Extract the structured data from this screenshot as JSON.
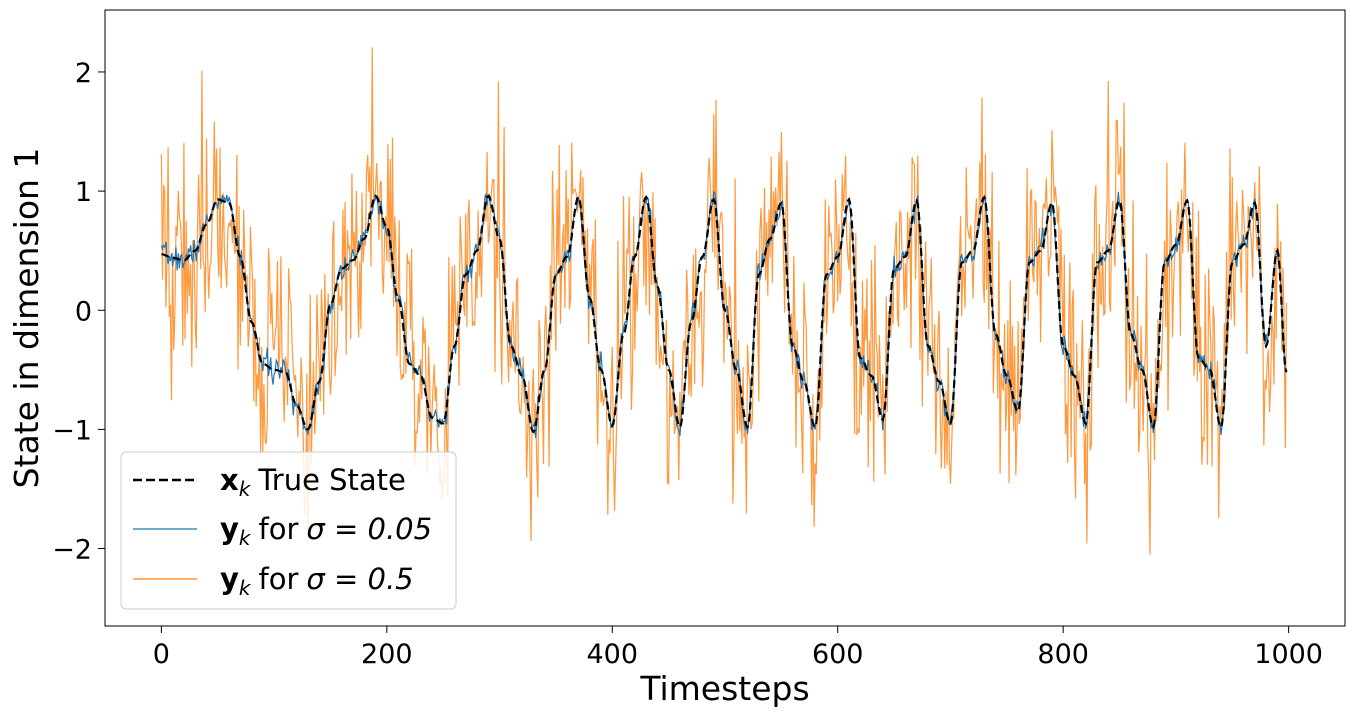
{
  "chart_data": {
    "type": "line",
    "xlabel": "Timesteps",
    "ylabel": "State in dimension 1",
    "xlim": [
      -50,
      1050
    ],
    "ylim": [
      -2.65,
      2.52
    ],
    "xticks": [
      0,
      200,
      400,
      600,
      800,
      1000
    ],
    "xtick_labels": [
      "0",
      "200",
      "400",
      "600",
      "800",
      "1000"
    ],
    "yticks": [
      -2,
      -1,
      0,
      1,
      2
    ],
    "ytick_labels": [
      "−2",
      "−1",
      "0",
      "1",
      "2"
    ],
    "grid": false,
    "legend": {
      "placement": "lower-left",
      "entries": [
        {
          "symbol": "x",
          "subscript": "k",
          "label": "True State"
        },
        {
          "symbol": "y",
          "subscript": "k",
          "label": "for",
          "math": "σ = 0.05"
        },
        {
          "symbol": "y",
          "subscript": "k",
          "label": "for",
          "math": "σ = 0.5"
        }
      ]
    },
    "series": [
      {
        "key": "true_state",
        "style": "dashed",
        "color": "#000000",
        "x": [
          0,
          10,
          20,
          30,
          40,
          50,
          60,
          70,
          80,
          90,
          100,
          110,
          120,
          130,
          140,
          150,
          160,
          170,
          180,
          190,
          200,
          210,
          220,
          230,
          240,
          250,
          260,
          270,
          280,
          290,
          300,
          310,
          320,
          330,
          340,
          350,
          360,
          370,
          380,
          390,
          400,
          410,
          420,
          430,
          440,
          450,
          460,
          470,
          480,
          490,
          500,
          510,
          520,
          530,
          540,
          550,
          560,
          570,
          580,
          590,
          600,
          610,
          620,
          630,
          640,
          650,
          660,
          670,
          680,
          690,
          700,
          710,
          720,
          730,
          740,
          750,
          760,
          770,
          780,
          790,
          800,
          810,
          820,
          830,
          840,
          850,
          860,
          870,
          880,
          890,
          900,
          910,
          920,
          930,
          940,
          950,
          960,
          970,
          980,
          990,
          998
        ],
        "values": [
          0.47,
          0.44,
          0.42,
          0.5,
          0.72,
          0.93,
          0.9,
          0.45,
          -0.1,
          -0.45,
          -0.5,
          -0.52,
          -0.8,
          -1.0,
          -0.6,
          0.05,
          0.35,
          0.42,
          0.6,
          0.96,
          0.7,
          0.1,
          -0.45,
          -0.55,
          -0.9,
          -0.95,
          -0.3,
          0.3,
          0.5,
          0.96,
          0.6,
          -0.3,
          -0.55,
          -1.02,
          -0.5,
          0.3,
          0.45,
          0.95,
          0.1,
          -0.5,
          -0.97,
          -0.2,
          0.45,
          0.95,
          0.2,
          -0.5,
          -0.98,
          -0.1,
          0.45,
          0.93,
          0.0,
          -0.5,
          -0.98,
          0.3,
          0.6,
          0.9,
          -0.3,
          -0.6,
          -0.98,
          0.3,
          0.45,
          0.93,
          -0.4,
          -0.55,
          -0.92,
          0.35,
          0.45,
          0.92,
          -0.3,
          -0.6,
          -0.95,
          0.4,
          0.5,
          0.95,
          -0.2,
          -0.55,
          -0.85,
          0.4,
          0.5,
          0.9,
          -0.3,
          -0.55,
          -0.95,
          0.4,
          0.5,
          0.92,
          -0.2,
          -0.5,
          -0.98,
          0.4,
          0.55,
          0.92,
          -0.4,
          -0.5,
          -0.98,
          0.4,
          0.55,
          0.9,
          -0.3,
          0.5,
          -0.52
        ]
      },
      {
        "key": "obs_small",
        "style": "solid",
        "color": "#1f77b4",
        "noise_sigma": 0.05,
        "seed": 7
      },
      {
        "key": "obs_large",
        "style": "solid",
        "color": "#ff7f0e",
        "noise_sigma": 0.5,
        "seed": 19
      }
    ]
  }
}
